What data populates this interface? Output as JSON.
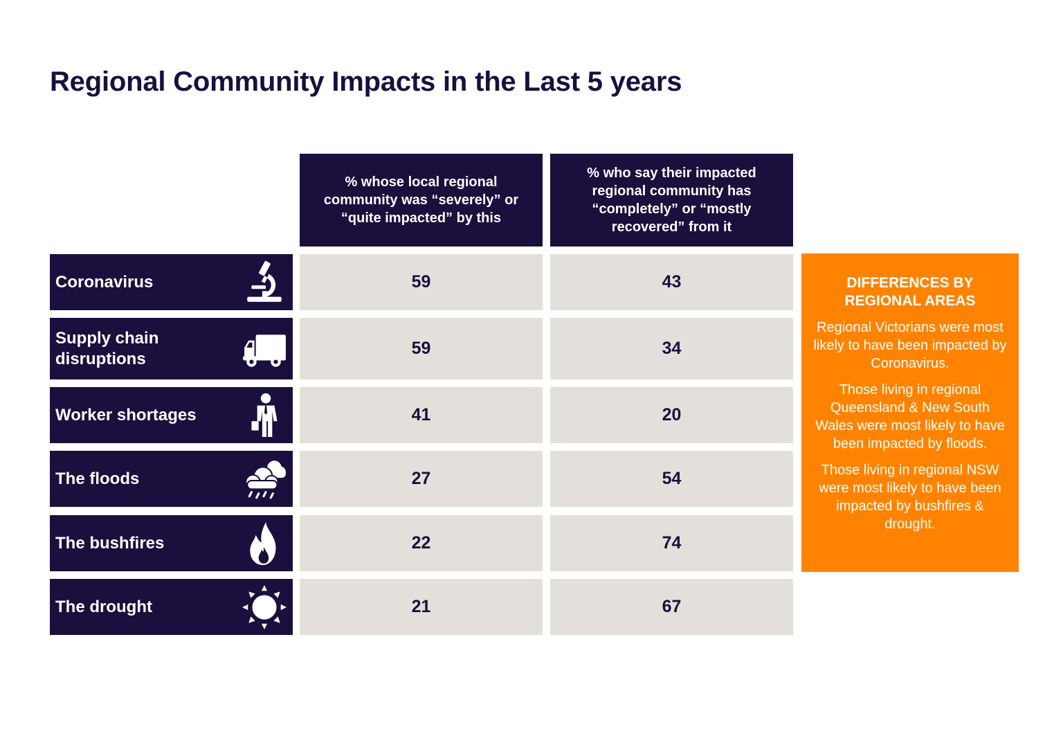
{
  "title": "Regional Community Impacts in the Last 5 years",
  "colors": {
    "navy": "#1a0f3d",
    "cell_bg": "#e3e0db",
    "orange": "#ff8300"
  },
  "chart_data": {
    "type": "table",
    "title": "Regional Community Impacts in the Last 5 years",
    "columns": [
      "% whose local regional community was “severely” or “quite impacted” by this",
      "% who say their impacted regional community has “completely” or “mostly recovered” from it"
    ],
    "rows": [
      {
        "label": "Coronavirus",
        "icon": "microscope-icon",
        "values": [
          59,
          43
        ]
      },
      {
        "label": "Supply chain disruptions",
        "icon": "delivery-truck-icon",
        "values": [
          59,
          34
        ]
      },
      {
        "label": "Worker shortages",
        "icon": "worker-icon",
        "values": [
          41,
          20
        ]
      },
      {
        "label": "The floods",
        "icon": "rain-cloud-icon",
        "values": [
          27,
          54
        ]
      },
      {
        "label": "The bushfires",
        "icon": "fire-icon",
        "values": [
          22,
          74
        ]
      },
      {
        "label": "The drought",
        "icon": "sun-icon",
        "values": [
          21,
          67
        ]
      }
    ]
  },
  "sidebar": {
    "heading": "DIFFERENCES BY REGIONAL AREAS",
    "paragraphs": [
      "Regional Victorians were most likely to have been impacted by Coronavirus.",
      "Those living in regional Queensland & New South Wales were most likely to have been impacted by floods.",
      "Those living in regional NSW were most likely to have been impacted by bushfires & drought."
    ]
  }
}
